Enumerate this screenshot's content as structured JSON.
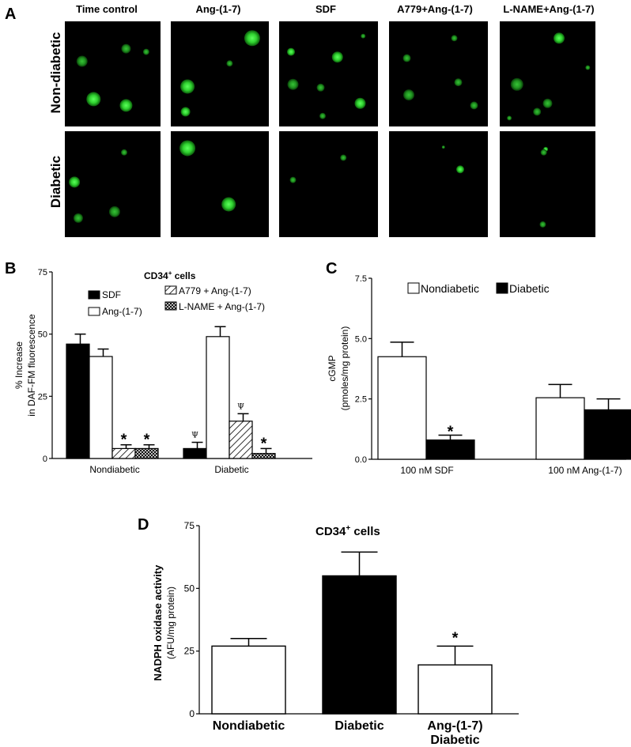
{
  "panel_a": {
    "label": "A",
    "columns": [
      "Time control",
      "Ang-(1-7)",
      "SDF",
      "A779+Ang-(1-7)",
      "L-NAME+Ang-(1-7)"
    ],
    "rows": [
      "Non-diabetic",
      "Diabetic"
    ]
  },
  "colors": {
    "cell_green": "#2fd12f",
    "image_bg": "#000000",
    "bar_black": "#000000",
    "bar_white": "#ffffff"
  },
  "chart_data": [
    {
      "id": "B",
      "type": "bar",
      "panel_label": "B",
      "title": "CD34",
      "title_sup": "+",
      "title_rest": " cells",
      "ylabel_line1": "% Increase",
      "ylabel_line2": "in DAF-FM fluorescence",
      "ylim": [
        0,
        75
      ],
      "yticks": [
        "0",
        "25",
        "50",
        "75"
      ],
      "categories": [
        "Nondiabetic",
        "Diabetic"
      ],
      "series": [
        {
          "name": "SDF",
          "fill": "black",
          "values": [
            46,
            4
          ],
          "errors": [
            4,
            2.5
          ]
        },
        {
          "name": "Ang-(1-7)",
          "fill": "white",
          "values": [
            41,
            49
          ],
          "errors": [
            3,
            4
          ]
        },
        {
          "name": "A779 + Ang-(1-7)",
          "fill": "hatch",
          "values": [
            4,
            15
          ],
          "errors": [
            1.5,
            3
          ]
        },
        {
          "name": "L-NAME + Ang-(1-7)",
          "fill": "cross",
          "values": [
            4,
            2
          ],
          "errors": [
            1.5,
            2
          ]
        }
      ],
      "annotations": [
        {
          "category": 0,
          "series": 2,
          "text": "*"
        },
        {
          "category": 0,
          "series": 3,
          "text": "*"
        },
        {
          "category": 1,
          "series": 0,
          "text": "Ψ"
        },
        {
          "category": 1,
          "series": 2,
          "text": "Ψ"
        },
        {
          "category": 1,
          "series": 3,
          "text": "*"
        }
      ],
      "grid": false
    },
    {
      "id": "C",
      "type": "bar",
      "panel_label": "C",
      "ylabel_line1": "cGMP",
      "ylabel_line2": "(pmoles/mg protein)",
      "ylim": [
        0,
        7.5
      ],
      "yticks": [
        "0.0",
        "2.5",
        "5.0",
        "7.5"
      ],
      "categories": [
        "100 nM SDF",
        "100 nM Ang-(1-7)"
      ],
      "series": [
        {
          "name": "Nondiabetic",
          "fill": "white",
          "values": [
            4.25,
            2.55
          ],
          "errors": [
            0.6,
            0.55
          ]
        },
        {
          "name": "Diabetic",
          "fill": "black",
          "values": [
            0.8,
            2.05
          ],
          "errors": [
            0.2,
            0.45
          ]
        }
      ],
      "annotations": [
        {
          "category": 0,
          "series": 1,
          "text": "*"
        }
      ],
      "legend": "top",
      "grid": false
    },
    {
      "id": "D",
      "type": "bar",
      "panel_label": "D",
      "title": "CD34",
      "title_sup": "+",
      "title_rest": " cells",
      "ylabel_line1": "NADPH oxidase activity",
      "ylabel_line2": "(AFU/mg protein)",
      "ylim": [
        0,
        75
      ],
      "yticks": [
        "0",
        "25",
        "50",
        "75"
      ],
      "categories": [
        "Nondiabetic",
        "Diabetic",
        "Ang-(1-7)"
      ],
      "category_sublabels": [
        "",
        "",
        "Diabetic"
      ],
      "values": [
        27,
        55,
        19.5
      ],
      "errors": [
        3,
        9.5,
        7.5
      ],
      "fills": [
        "white",
        "black",
        "white"
      ],
      "annotations": [
        {
          "category": 2,
          "text": "*"
        }
      ],
      "grid": false
    }
  ]
}
